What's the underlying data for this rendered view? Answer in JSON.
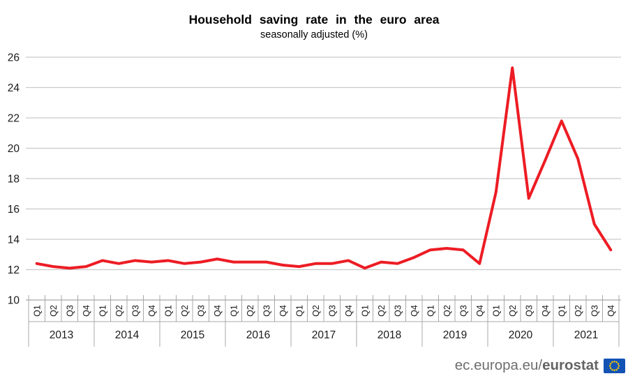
{
  "chart_data": {
    "type": "line",
    "title": "Household saving rate in the euro area",
    "subtitle": "seasonally adjusted (%)",
    "xlabel": "",
    "ylabel": "",
    "ylim": [
      10,
      26
    ],
    "yticks": [
      10,
      12,
      14,
      16,
      18,
      20,
      22,
      24,
      26
    ],
    "grid": true,
    "legend_position": "none",
    "years": [
      {
        "label": "2013",
        "quarters": [
          "Q1",
          "Q2",
          "Q3",
          "Q4"
        ]
      },
      {
        "label": "2014",
        "quarters": [
          "Q1",
          "Q2",
          "Q3",
          "Q4"
        ]
      },
      {
        "label": "2015",
        "quarters": [
          "Q1",
          "Q2",
          "Q3",
          "Q4"
        ]
      },
      {
        "label": "2016",
        "quarters": [
          "Q1",
          "Q2",
          "Q3",
          "Q4"
        ]
      },
      {
        "label": "2017",
        "quarters": [
          "Q1",
          "Q2",
          "Q3",
          "Q4"
        ]
      },
      {
        "label": "2018",
        "quarters": [
          "Q1",
          "Q2",
          "Q3",
          "Q4"
        ]
      },
      {
        "label": "2019",
        "quarters": [
          "Q1",
          "Q2",
          "Q3",
          "Q4"
        ]
      },
      {
        "label": "2020",
        "quarters": [
          "Q1",
          "Q2",
          "Q3",
          "Q4"
        ]
      },
      {
        "label": "2021",
        "quarters": [
          "Q1",
          "Q2",
          "Q3",
          "Q4"
        ]
      }
    ],
    "series": [
      {
        "name": "Household saving rate (seasonally adjusted, %)",
        "values": [
          12.4,
          12.2,
          12.1,
          12.2,
          12.6,
          12.4,
          12.6,
          12.5,
          12.6,
          12.4,
          12.5,
          12.7,
          12.5,
          12.5,
          12.5,
          12.3,
          12.2,
          12.4,
          12.4,
          12.6,
          12.1,
          12.5,
          12.4,
          12.8,
          13.3,
          13.4,
          13.3,
          12.4,
          17.1,
          25.3,
          16.7,
          19.2,
          21.8,
          19.3,
          15.0,
          13.3
        ]
      }
    ]
  },
  "footer": {
    "url_prefix": "ec.europa.eu/",
    "url_bold": "eurostat",
    "logo_icon": "eu-flag-icon"
  },
  "colors": {
    "line": "#ed1c24",
    "gridline": "#c9c9c9",
    "axis_border": "#a8a8a8",
    "text": "#1a1a1a",
    "footer_text": "#6e6e6e",
    "flag_blue": "#1353b5",
    "flag_stars": "#ffcc00"
  }
}
